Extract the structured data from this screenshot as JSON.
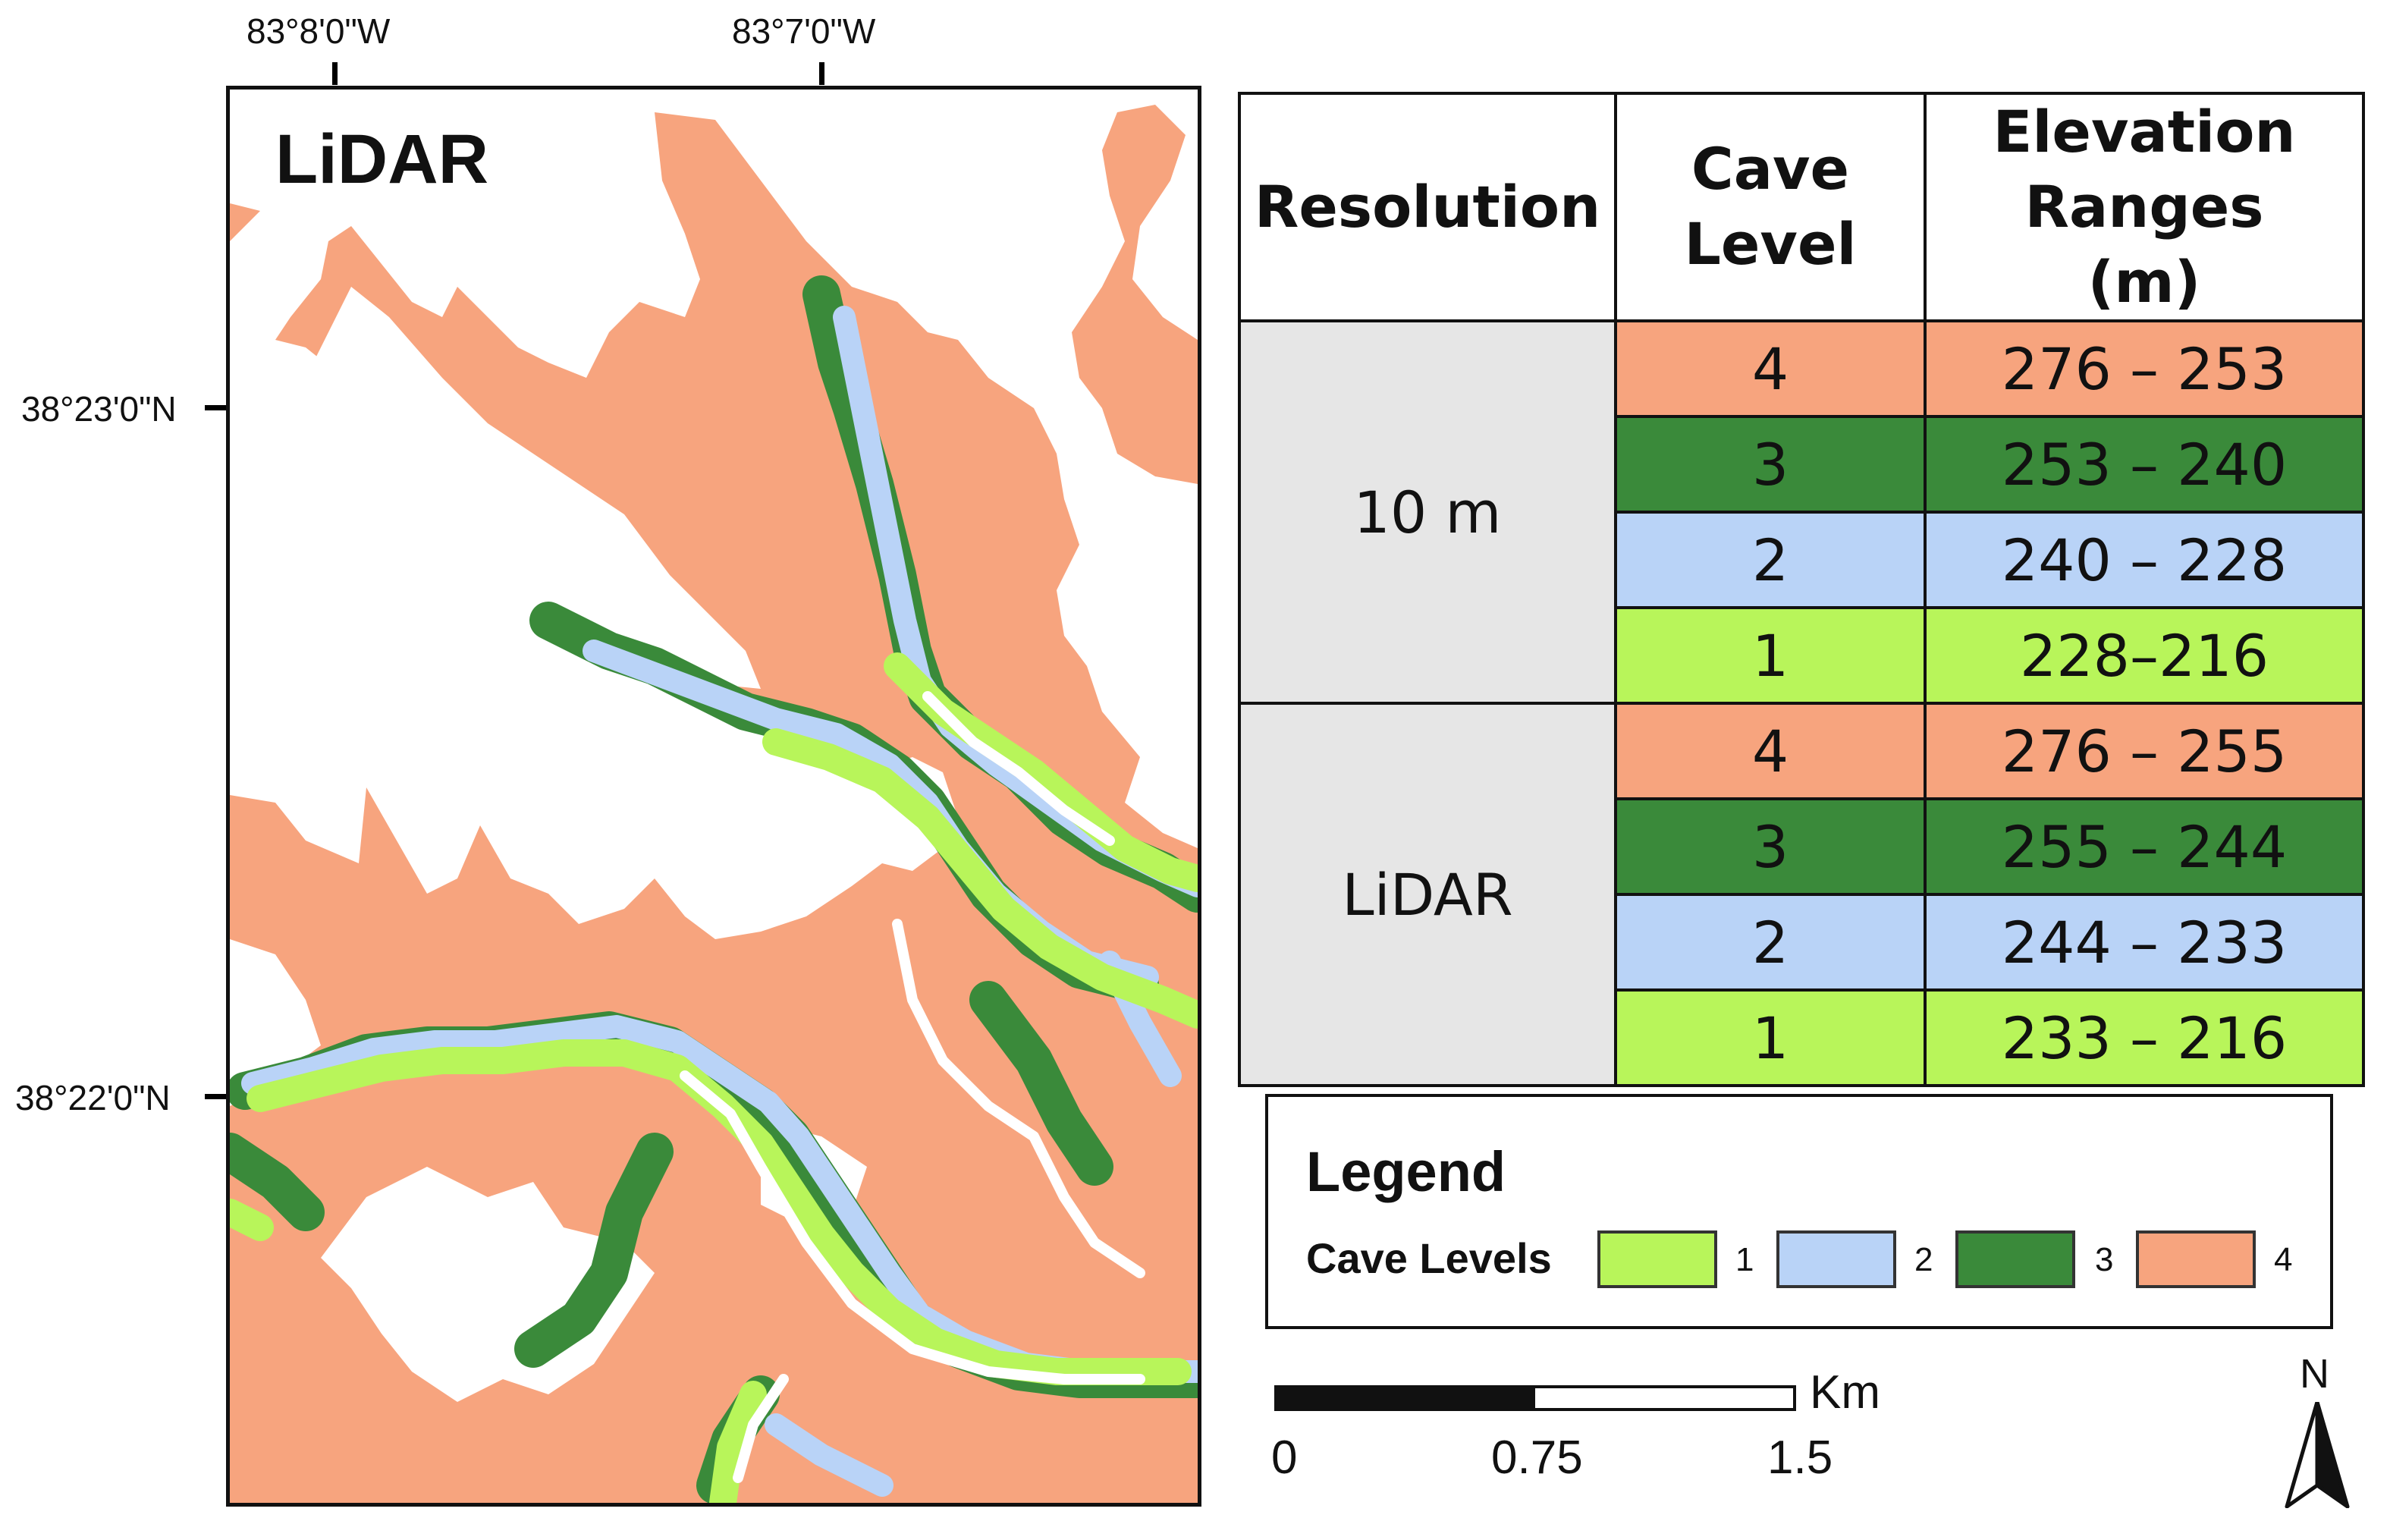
{
  "map": {
    "title": "LiDAR",
    "lon_labels": [
      "83°8'0\"W",
      "83°7'0\"W"
    ],
    "lat_labels": [
      "38°23'0\"N",
      "38°22'0\"N"
    ]
  },
  "colors": {
    "level_1": "#b8f55a",
    "level_2": "#b9d3f7",
    "level_3": "#3a8a3a",
    "level_4": "#f7a47e",
    "resolution_bg": "#e6e6e6"
  },
  "table": {
    "headers": [
      "Resolution",
      "Cave Level",
      "Elevation Ranges (m)"
    ],
    "groups": [
      {
        "resolution": "10 m",
        "rows": [
          {
            "level": "4",
            "range": "276 – 253"
          },
          {
            "level": "3",
            "range": "253 – 240"
          },
          {
            "level": "2",
            "range": "240 – 228"
          },
          {
            "level": "1",
            "range": "228–216"
          }
        ]
      },
      {
        "resolution": "LiDAR",
        "rows": [
          {
            "level": "4",
            "range": "276 – 255"
          },
          {
            "level": "3",
            "range": "255 – 244"
          },
          {
            "level": "2",
            "range": "244 – 233"
          },
          {
            "level": "1",
            "range": "233 – 216"
          }
        ]
      }
    ]
  },
  "legend": {
    "title": "Legend",
    "subtitle": "Cave Levels",
    "items": [
      {
        "label": "1",
        "color": "#b8f55a"
      },
      {
        "label": "2",
        "color": "#b9d3f7"
      },
      {
        "label": "3",
        "color": "#3a8a3a"
      },
      {
        "label": "4",
        "color": "#f7a47e"
      }
    ]
  },
  "scale": {
    "unit": "Km",
    "labels": [
      "0",
      "0.75",
      "1.5"
    ]
  },
  "north_arrow": {
    "label": "N"
  }
}
